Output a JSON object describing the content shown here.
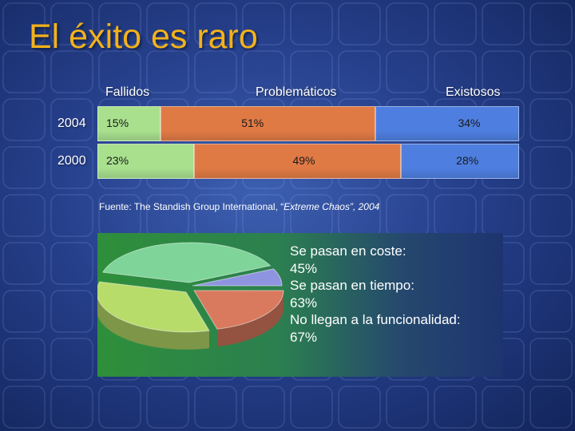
{
  "slide": {
    "title": "El éxito es raro"
  },
  "chart_data": {
    "type": "bar",
    "orientation": "horizontal",
    "stacked": true,
    "categories": [
      "2004",
      "2000"
    ],
    "series": [
      {
        "name": "Fallidos",
        "values": [
          15,
          23
        ],
        "color": "#a8e08e"
      },
      {
        "name": "Problemáticos",
        "values": [
          51,
          49
        ],
        "color": "#e07a45"
      },
      {
        "name": "Existosos",
        "values": [
          34,
          28
        ],
        "color": "#4e7fe0"
      }
    ],
    "data_labels": [
      [
        "15%",
        "51%",
        "34%"
      ],
      [
        "23%",
        "49%",
        "28%"
      ]
    ],
    "legend_placement": "top"
  },
  "source": {
    "prefix": "Fuente: The Standish Group International, “",
    "title": "Extreme Chaos”, 2004"
  },
  "pie": {
    "colors": [
      "#7fd49a",
      "#b8dc6a",
      "#d9795e",
      "#8f94e0"
    ]
  },
  "stats": {
    "lines": [
      "Se pasan en coste:",
      "45%",
      "Se pasan en tiempo:",
      "63%",
      "No llegan a la funcionalidad:",
      "67%"
    ]
  }
}
